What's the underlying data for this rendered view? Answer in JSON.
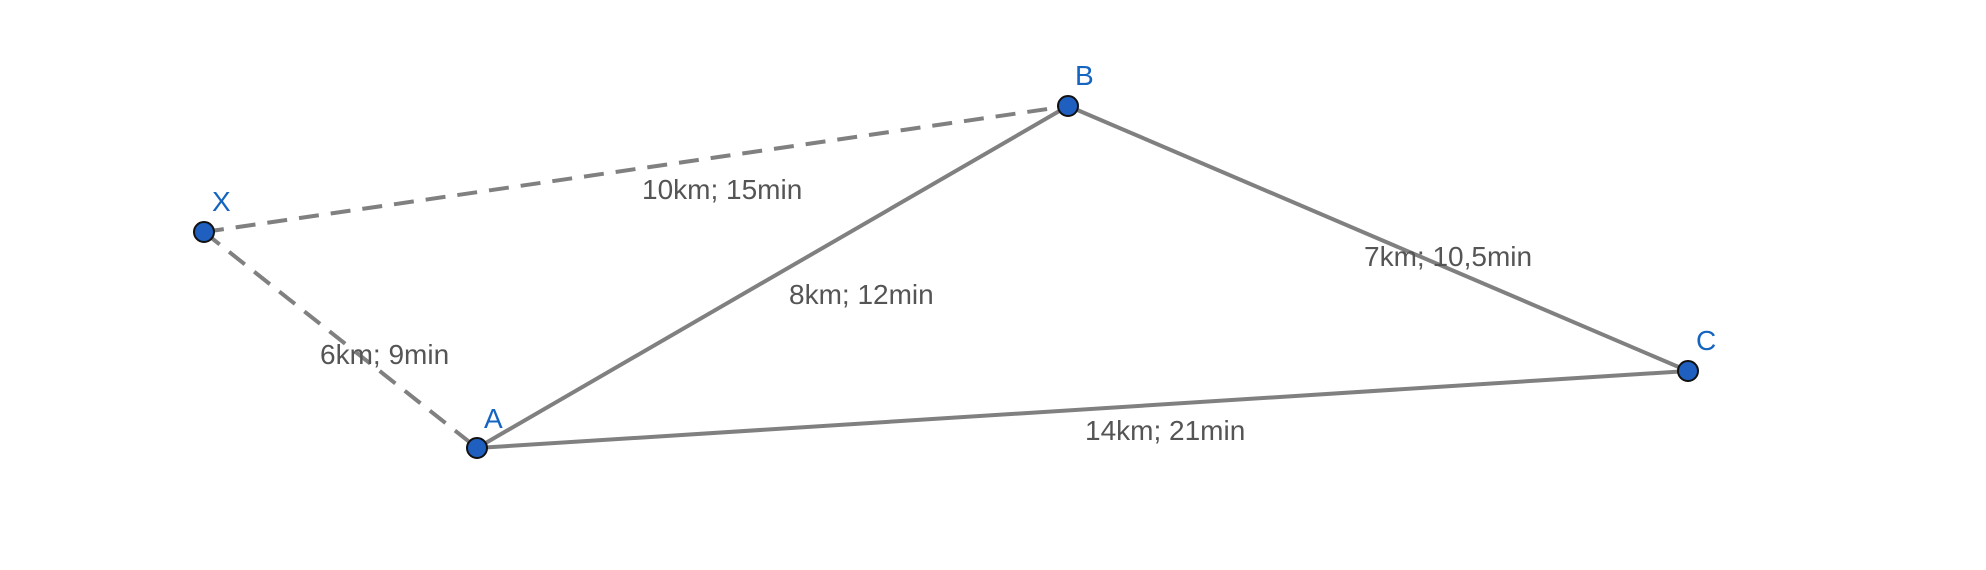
{
  "diagram": {
    "colors": {
      "background": "#ffffff",
      "edge": "#808080",
      "point_fill": "#1f5fbf",
      "point_label": "#1565c0",
      "edge_label": "#555555"
    },
    "points": [
      {
        "id": "X",
        "label": "X"
      },
      {
        "id": "A",
        "label": "A"
      },
      {
        "id": "B",
        "label": "B"
      },
      {
        "id": "C",
        "label": "C"
      }
    ],
    "edges": [
      {
        "id": "XB",
        "from": "X",
        "to": "B",
        "style": "dashed",
        "label": "10km; 15min"
      },
      {
        "id": "XA",
        "from": "X",
        "to": "A",
        "style": "dashed",
        "label": "6km; 9min"
      },
      {
        "id": "AB",
        "from": "A",
        "to": "B",
        "style": "solid",
        "label": "8km; 12min"
      },
      {
        "id": "BC",
        "from": "B",
        "to": "C",
        "style": "solid",
        "label": "7km; 10,5min"
      },
      {
        "id": "AC",
        "from": "A",
        "to": "C",
        "style": "solid",
        "label": "14km; 21min"
      }
    ]
  }
}
